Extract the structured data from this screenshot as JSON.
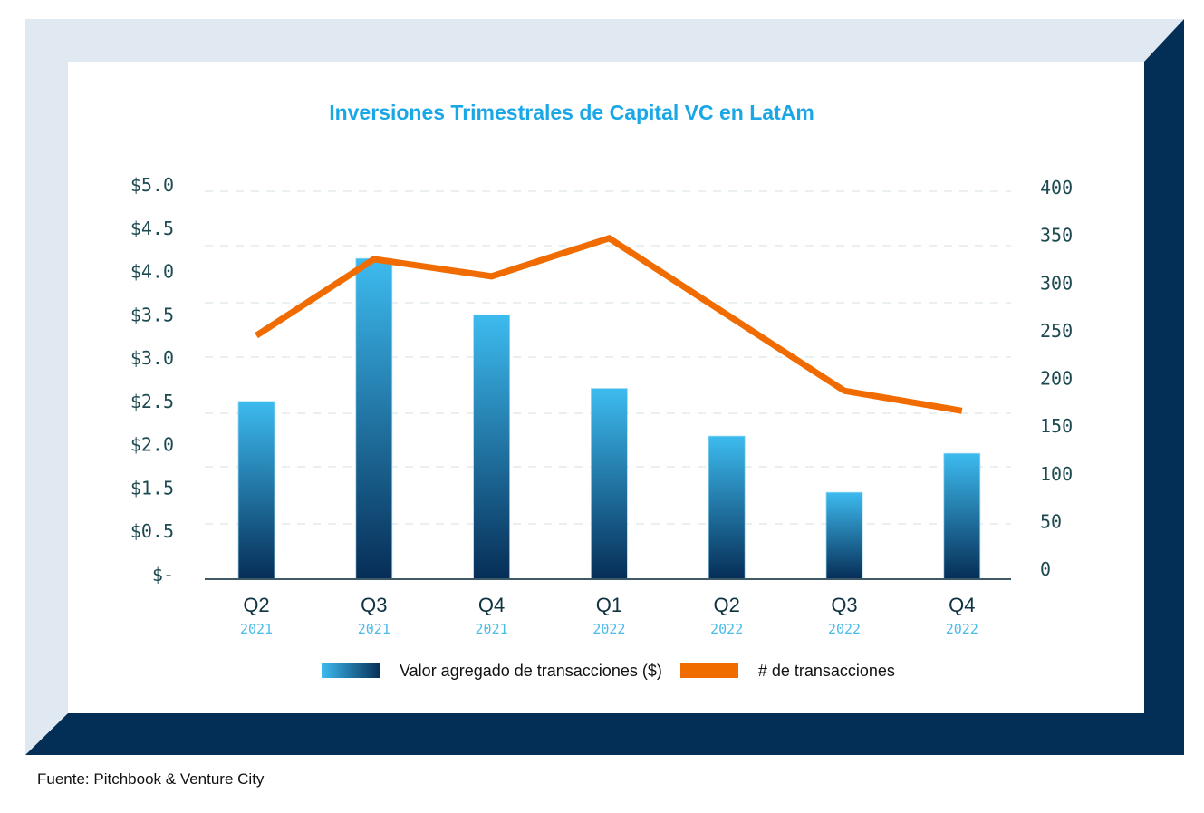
{
  "colors": {
    "frame_light": "#e0e8f2",
    "frame_dark": "#032f57",
    "title": "#1aa7e6",
    "bar_top": "#3dbbef",
    "bar_bottom": "#08305a",
    "line": "#f06c00",
    "axis": "#3d5a66",
    "grid": "#e3ecec"
  },
  "footer": {
    "source": "Fuente: Pitchbook & Venture City"
  },
  "chart_data": {
    "type": "bar+line",
    "title": "Inversiones Trimestrales de Capital VC en LatAm",
    "categories": [
      {
        "quarter": "Q2",
        "year": "2021"
      },
      {
        "quarter": "Q3",
        "year": "2021"
      },
      {
        "quarter": "Q4",
        "year": "2021"
      },
      {
        "quarter": "Q1",
        "year": "2022"
      },
      {
        "quarter": "Q2",
        "year": "2022"
      },
      {
        "quarter": "Q3",
        "year": "2022"
      },
      {
        "quarter": "Q4",
        "year": "2022"
      }
    ],
    "series": [
      {
        "name": "Valor agregado de transacciones ($)",
        "kind": "bar",
        "axis": "left",
        "unit": "USD billions",
        "values": [
          2.5,
          4.15,
          3.5,
          2.65,
          2.1,
          1.4,
          1.9
        ]
      },
      {
        "name": "# de transacciones",
        "kind": "line",
        "axis": "right",
        "values": [
          245,
          325,
          307,
          347,
          267,
          187,
          166
        ]
      }
    ],
    "left_axis": {
      "tick_labels": [
        "$-",
        "$0.5",
        "$1.5",
        "$2.0",
        "$2.5",
        "$3.0",
        "$3.5",
        "$4.0",
        "$4.5",
        "$5.0"
      ],
      "tick_values": [
        0,
        0.5,
        1.5,
        2.0,
        2.5,
        3.0,
        3.5,
        4.0,
        4.5,
        5.0
      ]
    },
    "right_axis": {
      "tick_labels": [
        "0",
        "50",
        "100",
        "150",
        "200",
        "250",
        "300",
        "350",
        "400"
      ],
      "ylim": [
        0,
        400
      ]
    },
    "legend": {
      "position": "bottom",
      "items": [
        {
          "label": "Valor agregado de transacciones ($)",
          "kind": "bar"
        },
        {
          "label": "# de transacciones",
          "kind": "line"
        }
      ]
    },
    "grid": true
  }
}
